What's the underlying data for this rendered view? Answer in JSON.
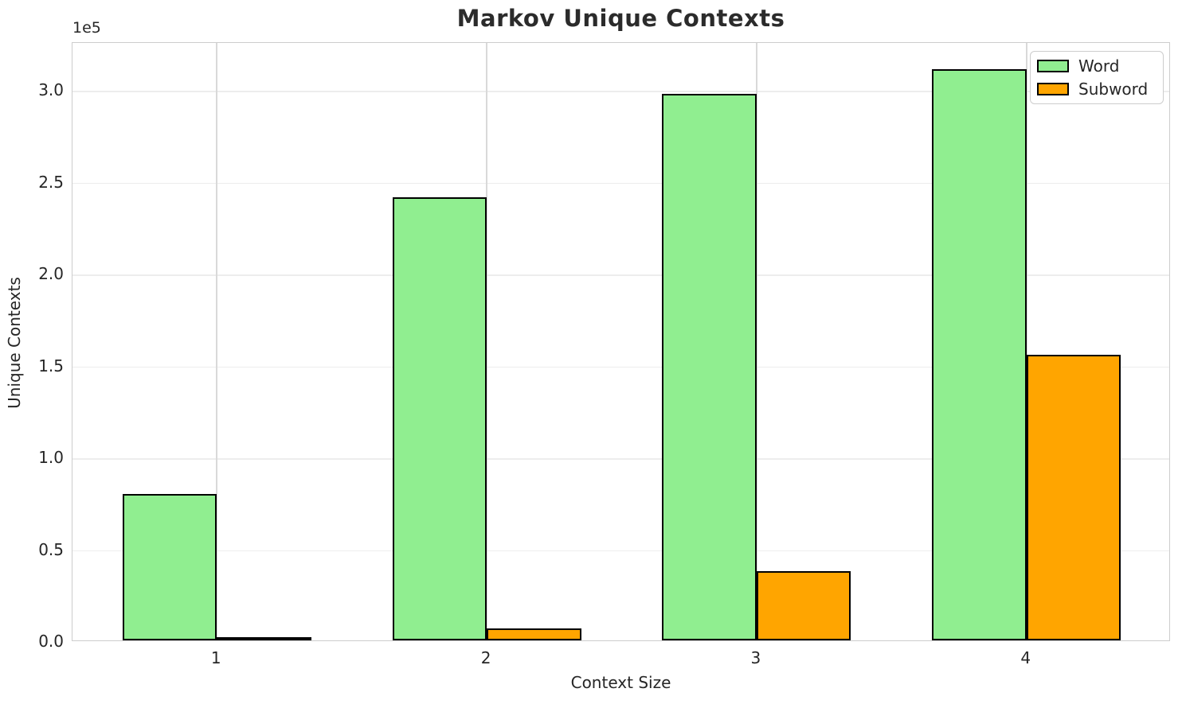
{
  "chart_data": {
    "type": "bar",
    "title": "Markov Unique Contexts",
    "xlabel": "Context Size",
    "ylabel": "Unique Contexts",
    "offset_text": "1e5",
    "categories": [
      "1",
      "2",
      "3",
      "4"
    ],
    "series": [
      {
        "name": "Word",
        "color": "#90EE90",
        "edgecolor": "#000000",
        "values": [
          79500,
          241000,
          297500,
          311000
        ]
      },
      {
        "name": "Subword",
        "color": "#FFA500",
        "edgecolor": "#000000",
        "values": [
          1000,
          6500,
          37500,
          155500
        ]
      }
    ],
    "yticks": {
      "values": [
        0,
        50000,
        100000,
        150000,
        200000,
        250000,
        300000
      ],
      "labels": [
        "0.0",
        "0.5",
        "1.0",
        "1.5",
        "2.0",
        "2.5",
        "3.0"
      ]
    },
    "ylim": [
      0,
      326000
    ],
    "xlim": [
      -0.535,
      3.535
    ],
    "bar_width": 0.35,
    "grid": true,
    "legend_position": "upper right"
  }
}
